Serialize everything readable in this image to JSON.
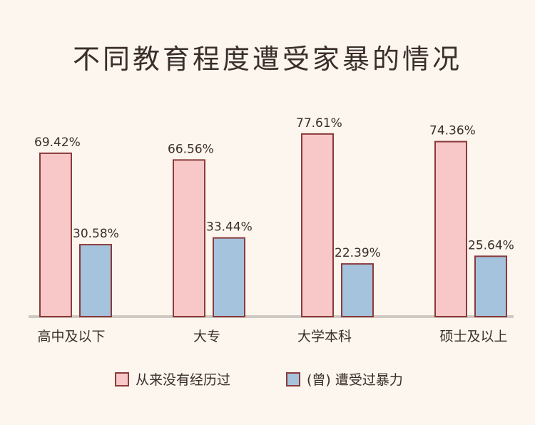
{
  "chart_data": {
    "type": "bar",
    "title": "不同教育程度遭受家暴的情况",
    "categories": [
      "高中及以下",
      "大专",
      "大学本科",
      "硕士及以上"
    ],
    "series": [
      {
        "name": "从来没有经历过",
        "color": "#f8c8c8",
        "values": [
          69.42,
          66.56,
          77.61,
          74.36
        ],
        "labels": [
          "69.42%",
          "66.56%",
          "77.61%",
          "74.36%"
        ]
      },
      {
        "name": "(曾) 遭受过暴力",
        "color": "#a5c3dc",
        "values": [
          30.58,
          33.44,
          22.39,
          25.64
        ],
        "labels": [
          "30.58%",
          "33.44%",
          "22.39%",
          "25.64%"
        ]
      }
    ],
    "ylim": [
      0,
      100
    ],
    "grid": false,
    "legend_position": "bottom",
    "outline_color": "#8b3a3a",
    "axis_color": "#cfc9c4"
  }
}
